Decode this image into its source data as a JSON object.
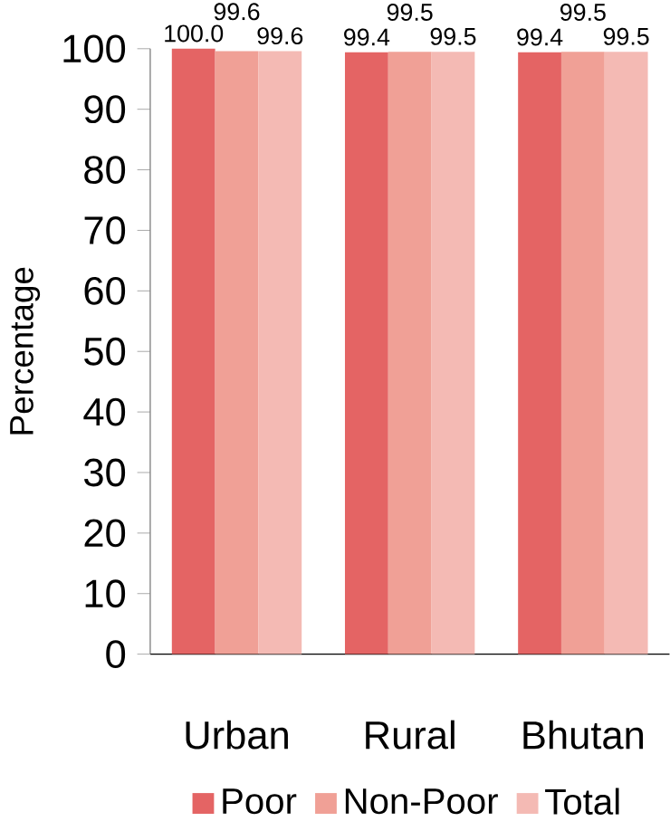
{
  "chart_data": {
    "type": "bar",
    "ylabel": "Percentage",
    "categories": [
      "Urban",
      "Rural",
      "Bhutan"
    ],
    "series": [
      {
        "name": "Poor",
        "color": "#e46464",
        "values": [
          100.0,
          99.4,
          99.4
        ],
        "value_labels": [
          "100.0",
          "99.4",
          "99.4"
        ]
      },
      {
        "name": "Non-Poor",
        "color": "#f0a096",
        "values": [
          99.6,
          99.5,
          99.5
        ],
        "value_labels": [
          "99.6",
          "99.5",
          "99.5"
        ]
      },
      {
        "name": "Total",
        "color": "#f4bab4",
        "values": [
          99.6,
          99.5,
          99.5
        ],
        "value_labels": [
          "99.6",
          "99.5",
          "99.5"
        ]
      }
    ],
    "ylim": [
      0,
      100
    ],
    "yticks": [
      0,
      10,
      20,
      30,
      40,
      50,
      60,
      70,
      80,
      90,
      100
    ],
    "legend": "bottom",
    "grid": false
  }
}
